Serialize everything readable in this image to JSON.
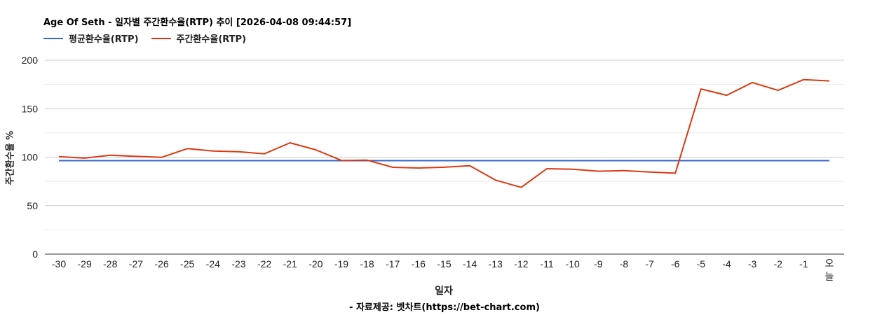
{
  "header": {
    "title": "Age Of Seth - 일자별 주간환수율(RTP) 추이 [2026-04-08 09:44:57]"
  },
  "legend": [
    {
      "label": "평균환수율(RTP)",
      "color": "#3366cc"
    },
    {
      "label": "주간환수율(RTP)",
      "color": "#dc3912"
    }
  ],
  "axes": {
    "ylabel": "주간환수율 %",
    "xlabel": "일자"
  },
  "footer": {
    "credit": "- 자료제공: 벳차트(https://bet-chart.com)"
  },
  "chart_data": {
    "type": "line",
    "title": "Age Of Seth - 일자별 주간환수율(RTP) 추이 [2026-04-08 09:44:57]",
    "xlabel": "일자",
    "ylabel": "주간환수율 %",
    "ylim": [
      0,
      200
    ],
    "yticks": [
      0,
      50,
      100,
      150,
      200
    ],
    "grid": true,
    "legend_position": "top-left",
    "categories": [
      "-30",
      "-29",
      "-28",
      "-27",
      "-26",
      "-25",
      "-24",
      "-23",
      "-22",
      "-21",
      "-20",
      "-19",
      "-18",
      "-17",
      "-16",
      "-15",
      "-14",
      "-13",
      "-12",
      "-11",
      "-10",
      "-9",
      "-8",
      "-7",
      "-6",
      "-5",
      "-4",
      "-3",
      "-2",
      "-1",
      "오늘"
    ],
    "series": [
      {
        "name": "평균환수율(RTP)",
        "color": "#3366cc",
        "values": [
          96.4,
          96.4,
          96.4,
          96.4,
          96.4,
          96.4,
          96.4,
          96.4,
          96.4,
          96.4,
          96.4,
          96.4,
          96.4,
          96.4,
          96.4,
          96.4,
          96.4,
          96.4,
          96.4,
          96.4,
          96.4,
          96.4,
          96.4,
          96.4,
          96.4,
          96.4,
          96.4,
          96.4,
          96.4,
          96.4,
          96.4
        ]
      },
      {
        "name": "주간환수율(RTP)",
        "color": "#dc3912",
        "values": [
          100.5,
          99,
          102,
          100.8,
          99.8,
          108.8,
          106.3,
          105.6,
          103.5,
          114.8,
          107.6,
          96.6,
          96.9,
          89.5,
          88.8,
          89.6,
          91.2,
          76.3,
          68.8,
          88.1,
          87.6,
          85.5,
          86.1,
          84.6,
          83.5,
          170.3,
          163.8,
          177,
          168.9,
          180,
          178.6
        ]
      }
    ]
  }
}
